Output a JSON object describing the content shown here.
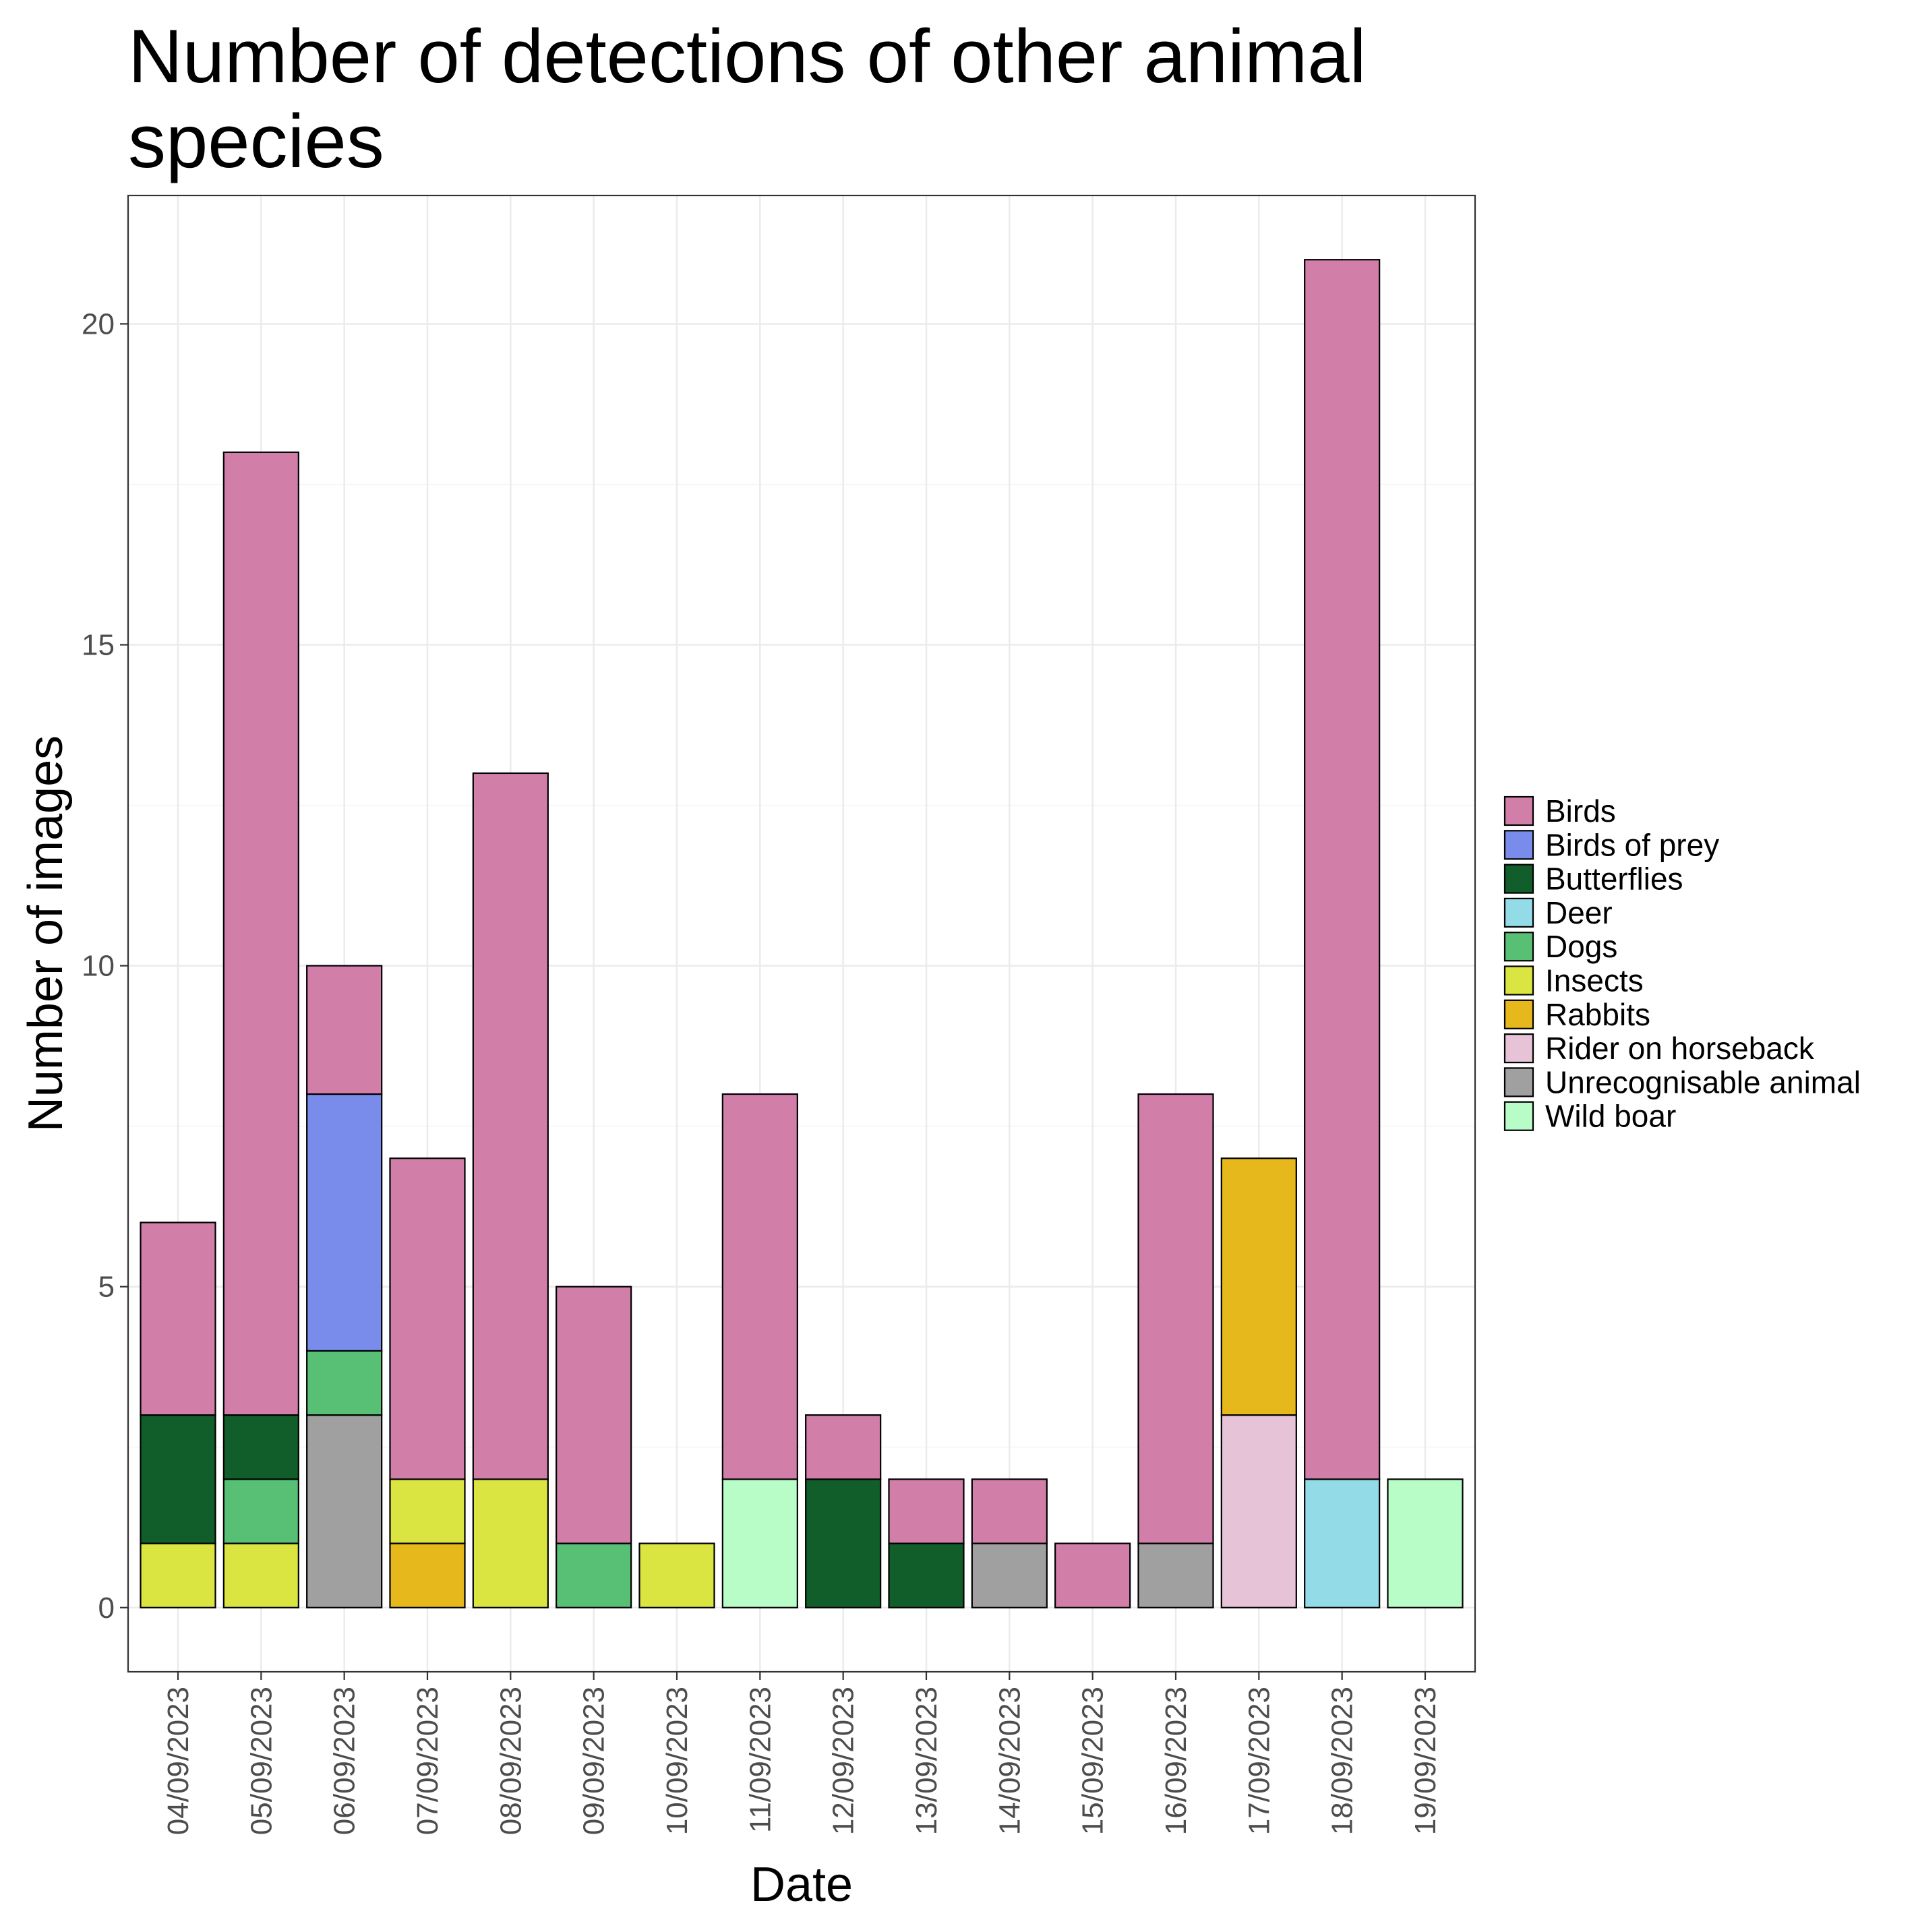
{
  "chart_data": {
    "type": "bar",
    "stacked": true,
    "title": "Number of detections of other animal species",
    "title_lines": [
      "Number of detections of other animal",
      "species"
    ],
    "xlabel": "Date",
    "ylabel": "Number of images",
    "ylim": [
      -1,
      22
    ],
    "yticks": [
      0,
      5,
      10,
      15,
      20
    ],
    "ytick_labels": [
      "0",
      "5",
      "10",
      "15",
      "20"
    ],
    "grid": true,
    "legend_position": "right",
    "categories": [
      "04/09/2023",
      "05/09/2023",
      "06/09/2023",
      "07/09/2023",
      "08/09/2023",
      "09/09/2023",
      "10/09/2023",
      "11/09/2023",
      "12/09/2023",
      "13/09/2023",
      "14/09/2023",
      "15/09/2023",
      "16/09/2023",
      "17/09/2023",
      "18/09/2023",
      "19/09/2023"
    ],
    "series": [
      {
        "name": "Birds",
        "color": "#d17fa8",
        "values": [
          3,
          15,
          2,
          5,
          11,
          4,
          0,
          6,
          1,
          1,
          1,
          1,
          7,
          0,
          19,
          0
        ]
      },
      {
        "name": "Birds of prey",
        "color": "#7a8ceb",
        "values": [
          0,
          0,
          4,
          0,
          0,
          0,
          0,
          0,
          0,
          0,
          0,
          0,
          0,
          0,
          0,
          0
        ]
      },
      {
        "name": "Butterflies",
        "color": "#115e2a",
        "values": [
          2,
          1,
          0,
          0,
          0,
          0,
          0,
          0,
          2,
          1,
          0,
          0,
          0,
          0,
          0,
          0
        ]
      },
      {
        "name": "Deer",
        "color": "#93dbe6",
        "values": [
          0,
          0,
          0,
          0,
          0,
          0,
          0,
          0,
          0,
          0,
          0,
          0,
          0,
          0,
          2,
          0
        ]
      },
      {
        "name": "Dogs",
        "color": "#58c074",
        "values": [
          0,
          1,
          1,
          0,
          0,
          1,
          0,
          0,
          0,
          0,
          0,
          0,
          0,
          0,
          0,
          0
        ]
      },
      {
        "name": "Insects",
        "color": "#dbe542",
        "values": [
          1,
          1,
          0,
          1,
          2,
          0,
          1,
          0,
          0,
          0,
          0,
          0,
          0,
          0,
          0,
          0
        ]
      },
      {
        "name": "Rabbits",
        "color": "#e6b81c",
        "values": [
          0,
          0,
          0,
          1,
          0,
          0,
          0,
          0,
          0,
          0,
          0,
          0,
          0,
          4,
          0,
          0
        ]
      },
      {
        "name": "Rider on horseback",
        "color": "#e6c3d6",
        "values": [
          0,
          0,
          0,
          0,
          0,
          0,
          0,
          0,
          0,
          0,
          0,
          0,
          0,
          3,
          0,
          0
        ]
      },
      {
        "name": "Unrecognisable animal",
        "color": "#a0a0a0",
        "values": [
          0,
          0,
          3,
          0,
          0,
          0,
          0,
          0,
          0,
          0,
          1,
          0,
          1,
          0,
          0,
          0
        ]
      },
      {
        "name": "Wild boar",
        "color": "#b8fcc8",
        "values": [
          0,
          0,
          0,
          0,
          0,
          0,
          0,
          2,
          0,
          0,
          0,
          0,
          0,
          0,
          0,
          2
        ]
      }
    ],
    "stack_order_bottom_to_top": [
      "Wild boar",
      "Unrecognisable animal",
      "Rider on horseback",
      "Rabbits",
      "Insects",
      "Dogs",
      "Deer",
      "Butterflies",
      "Birds of prey",
      "Birds"
    ]
  }
}
